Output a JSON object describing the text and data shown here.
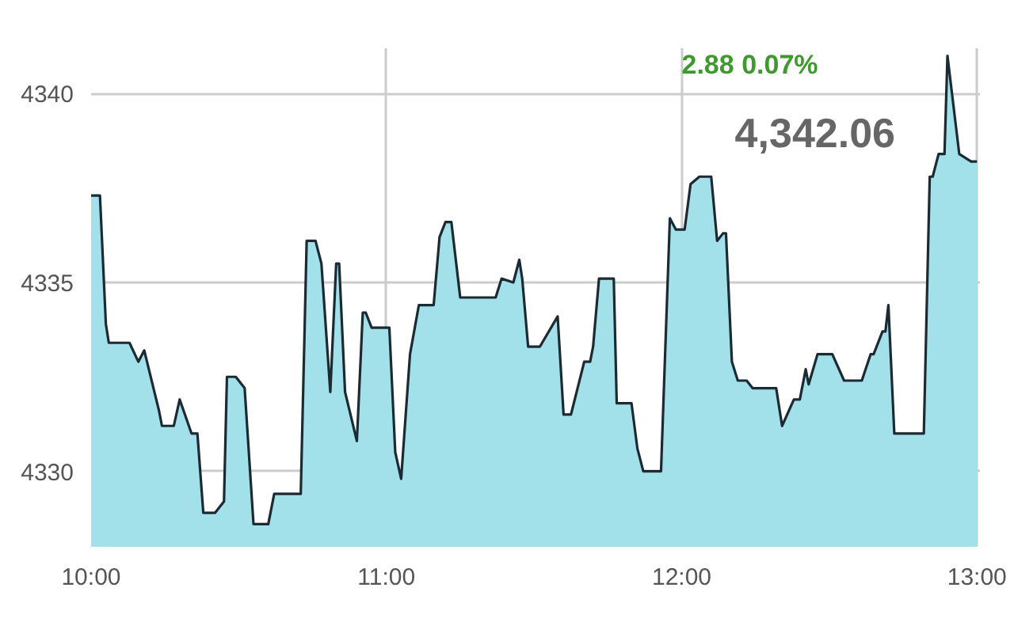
{
  "chart_data": {
    "type": "area",
    "annotations": [
      "2.88  0.07%",
      "4,342.06"
    ],
    "x": [
      10.0,
      10.03,
      10.05,
      10.06,
      10.13,
      10.16,
      10.18,
      10.23,
      10.24,
      10.28,
      10.3,
      10.34,
      10.36,
      10.38,
      10.42,
      10.45,
      10.46,
      10.49,
      10.52,
      10.55,
      10.6,
      10.62,
      10.71,
      10.73,
      10.76,
      10.78,
      10.81,
      10.83,
      10.84,
      10.86,
      10.9,
      10.92,
      10.93,
      10.95,
      11.01,
      11.03,
      11.05,
      11.08,
      11.11,
      11.16,
      11.18,
      11.2,
      11.22,
      11.25,
      11.37,
      11.39,
      11.43,
      11.45,
      11.46,
      11.48,
      11.52,
      11.58,
      11.6,
      11.625,
      11.67,
      11.69,
      11.7,
      11.72,
      11.77,
      11.78,
      11.83,
      11.85,
      11.87,
      11.93,
      11.96,
      11.98,
      12.01,
      12.03,
      12.06,
      12.1,
      12.12,
      12.14,
      12.15,
      12.17,
      12.19,
      12.22,
      12.24,
      12.32,
      12.34,
      12.38,
      12.4,
      12.42,
      12.43,
      12.46,
      12.51,
      12.55,
      12.61,
      12.64,
      12.65,
      12.68,
      12.69,
      12.7,
      12.72,
      12.82,
      12.84,
      12.85,
      12.87,
      12.89,
      12.9,
      12.94,
      12.96,
      12.98,
      13.0
    ],
    "series": [
      {
        "color": "#a3e1ea",
        "values": [
          4337.3,
          4337.3,
          4333.9,
          4333.4,
          4333.4,
          4332.9,
          4333.2,
          4331.6,
          4331.2,
          4331.2,
          4331.9,
          4331.0,
          4331.0,
          4328.9,
          4328.9,
          4329.2,
          4332.5,
          4332.5,
          4332.2,
          4328.6,
          4328.6,
          4329.4,
          4329.4,
          4336.1,
          4336.1,
          4335.5,
          4332.1,
          4335.5,
          4335.5,
          4332.1,
          4330.8,
          4334.2,
          4334.2,
          4333.8,
          4333.8,
          4330.5,
          4329.8,
          4333.1,
          4334.4,
          4334.4,
          4336.2,
          4336.6,
          4336.6,
          4334.6,
          4334.6,
          4335.1,
          4335.0,
          4335.6,
          4335.1,
          4333.3,
          4333.3,
          4334.1,
          4331.5,
          4331.5,
          4332.9,
          4332.9,
          4333.3,
          4335.1,
          4335.1,
          4331.8,
          4331.8,
          4330.6,
          4330.0,
          4330.0,
          4336.7,
          4336.4,
          4336.4,
          4337.6,
          4337.8,
          4337.8,
          4336.1,
          4336.3,
          4336.3,
          4332.9,
          4332.4,
          4332.4,
          4332.2,
          4332.2,
          4331.2,
          4331.9,
          4331.9,
          4332.7,
          4332.3,
          4333.1,
          4333.1,
          4332.4,
          4332.4,
          4333.1,
          4333.1,
          4333.7,
          4333.7,
          4334.4,
          4331.0,
          4331.0,
          4337.8,
          4337.8,
          4338.4,
          4338.4,
          4341.0,
          4338.4,
          4338.3,
          4338.2,
          4338.2
        ]
      }
    ],
    "xlim": [
      10,
      13.01
    ],
    "ylim": [
      4328,
      4341.2
    ],
    "xticks": [
      {
        "value": 10,
        "label": "10:00"
      },
      {
        "value": 11,
        "label": "11:00"
      },
      {
        "value": 12,
        "label": "12:00"
      },
      {
        "value": 13,
        "label": "13:00"
      }
    ],
    "yticks": [
      4330,
      4335,
      4340
    ],
    "grid": true
  }
}
